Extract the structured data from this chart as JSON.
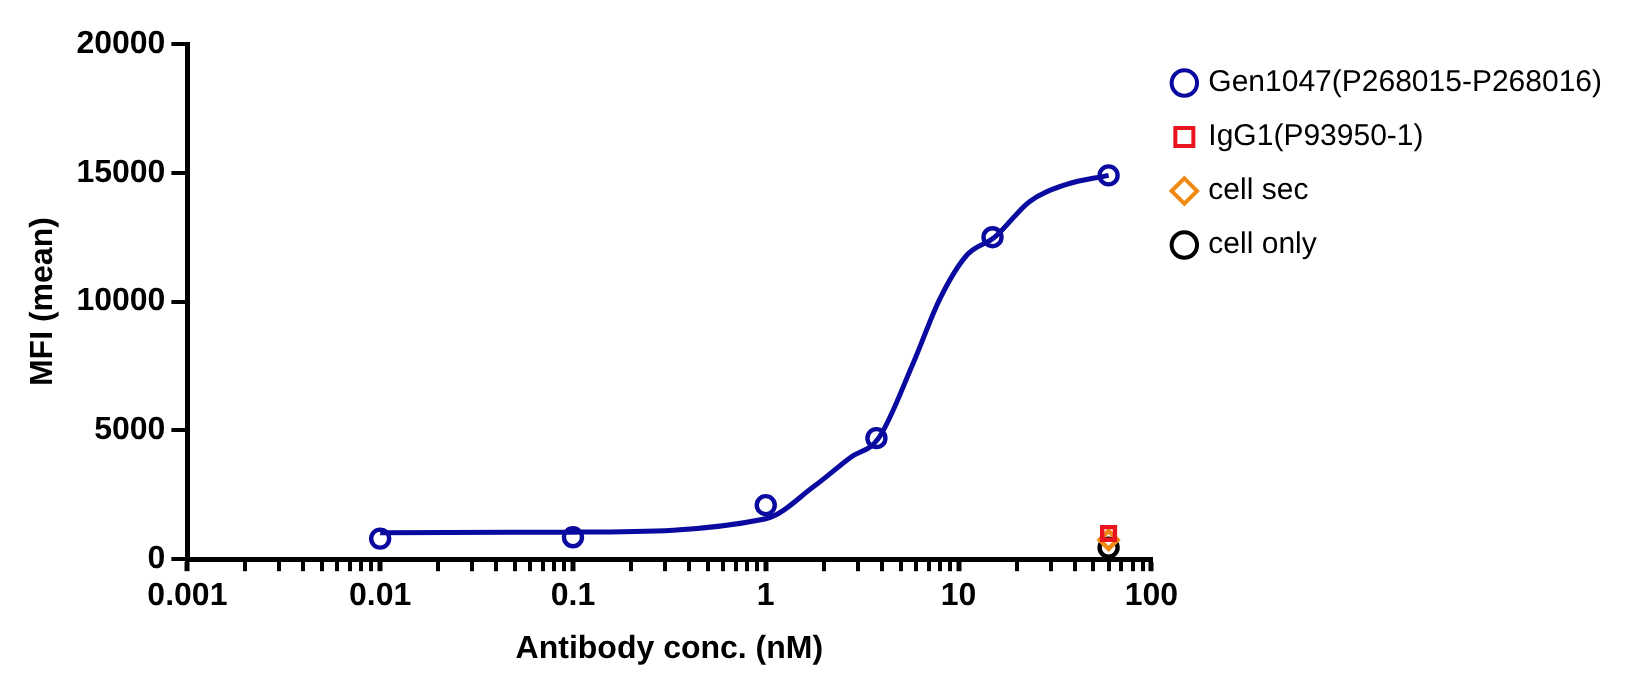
{
  "chart_data": {
    "type": "scatter",
    "xlabel": "Antibody conc. (nM)",
    "ylabel": "MFI (mean)",
    "log": "x",
    "xlim": [
      0.001,
      100
    ],
    "ylim": [
      0,
      20000
    ],
    "xticks": [
      0.001,
      {
        "value": 0.002,
        "label": null
      },
      {
        "value": 0.003,
        "label": null
      },
      {
        "value": 0.004,
        "label": null
      },
      {
        "value": 0.005,
        "label": null
      },
      {
        "value": 0.006,
        "label": null
      },
      {
        "value": 0.007,
        "label": null
      },
      {
        "value": 0.008,
        "label": null
      },
      {
        "value": 0.009,
        "label": null
      },
      0.01,
      {
        "value": 0.02,
        "label": null
      },
      {
        "value": 0.03,
        "label": null
      },
      {
        "value": 0.04,
        "label": null
      },
      {
        "value": 0.05,
        "label": null
      },
      {
        "value": 0.06,
        "label": null
      },
      {
        "value": 0.07,
        "label": null
      },
      {
        "value": 0.08,
        "label": null
      },
      {
        "value": 0.09,
        "label": null
      },
      0.1,
      {
        "value": 0.2,
        "label": null
      },
      {
        "value": 0.3,
        "label": null
      },
      {
        "value": 0.4,
        "label": null
      },
      {
        "value": 0.5,
        "label": null
      },
      {
        "value": 0.6,
        "label": null
      },
      {
        "value": 0.7,
        "label": null
      },
      {
        "value": 0.8,
        "label": null
      },
      {
        "value": 0.9,
        "label": null
      },
      1,
      {
        "value": 2,
        "label": null
      },
      {
        "value": 3,
        "label": null
      },
      {
        "value": 4,
        "label": null
      },
      {
        "value": 5,
        "label": null
      },
      {
        "value": 6,
        "label": null
      },
      {
        "value": 7,
        "label": null
      },
      {
        "value": 8,
        "label": null
      },
      {
        "value": 9,
        "label": null
      },
      10,
      {
        "value": 20,
        "label": null
      },
      {
        "value": 30,
        "label": null
      },
      {
        "value": 40,
        "label": null
      },
      {
        "value": 50,
        "label": null
      },
      {
        "value": 60,
        "label": null
      },
      {
        "value": 70,
        "label": null
      },
      {
        "value": 80,
        "label": null
      },
      {
        "value": 90,
        "label": null
      },
      100
    ],
    "yticks": [
      0,
      5000,
      10000,
      15000,
      20000
    ],
    "grid": false,
    "legend": "right",
    "series": [
      {
        "type": "line",
        "color": "#0a0aa0",
        "marker": "none",
        "line_style": "solid",
        "x": [
          0.01,
          0.1,
          1,
          1.78,
          2.75,
          3.85,
          5.8,
          8,
          11,
          15.4,
          23.4,
          36,
          60
        ],
        "values": [
          1030,
          1050,
          1570,
          2830,
          3950,
          4700,
          7590,
          10110,
          11790,
          12500,
          13890,
          14540,
          14900
        ]
      },
      {
        "name": "Gen1047(P268015-P268016)",
        "color": "#0a0aa0",
        "marker": "circle",
        "x": [
          0.01,
          0.1,
          1,
          3.75,
          15,
          60
        ],
        "values": [
          800,
          850,
          2100,
          4700,
          12500,
          14900
        ]
      },
      {
        "name": "IgG1(P93950-1)",
        "color": "#e8141e",
        "marker": "square",
        "x": [
          60
        ],
        "values": [
          1000
        ]
      },
      {
        "name": "cell sec",
        "color": "#f08a14",
        "marker": "diamond",
        "x": [
          60
        ],
        "values": [
          750
        ]
      },
      {
        "name": "cell only",
        "color": "#000000",
        "marker": "circle",
        "x": [
          60
        ],
        "values": [
          450
        ]
      }
    ]
  }
}
